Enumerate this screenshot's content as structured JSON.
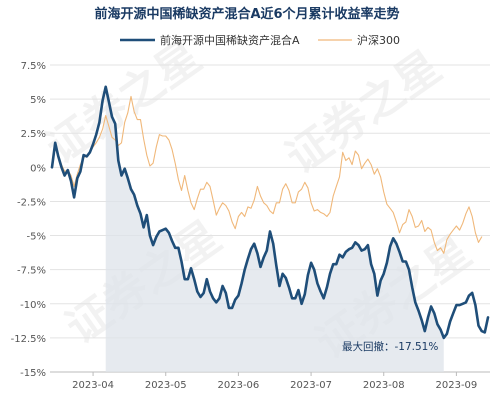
{
  "chart_data": {
    "type": "line",
    "title": "前海开源中国稀缺资产混合A近6个月累计收益率走势",
    "xlabel": "",
    "ylabel": "",
    "y_unit": "%",
    "ylim": [
      -15,
      7.5
    ],
    "yticks": [
      7.5,
      5,
      2.5,
      0,
      -2.5,
      -5,
      -7.5,
      -10,
      -12.5,
      -15
    ],
    "ytick_labels": [
      "7.5%",
      "5%",
      "2.5%",
      "0%",
      "-2.5%",
      "-5%",
      "-7.5%",
      "-10%",
      "-12.5%",
      "-15%"
    ],
    "xticks": [
      "2023-04",
      "2023-05",
      "2023-06",
      "2023-07",
      "2023-08",
      "2023-09"
    ],
    "legend_position": "top",
    "grid": true,
    "series": [
      {
        "name": "前海开源中国稀缺资产混合A",
        "color": "#1f4e79",
        "values": [
          0,
          1.8,
          0.8,
          0.0,
          -0.6,
          -0.2,
          -1.0,
          -2.2,
          -0.8,
          -0.3,
          0.9,
          0.8,
          1.1,
          1.7,
          2.4,
          3.3,
          4.9,
          5.9,
          4.8,
          3.7,
          3.2,
          0.5,
          -0.6,
          -0.1,
          -0.8,
          -1.6,
          -2.0,
          -2.8,
          -3.4,
          -4.4,
          -3.5,
          -5.0,
          -5.7,
          -5.1,
          -4.7,
          -4.6,
          -4.5,
          -4.8,
          -5.4,
          -5.9,
          -5.9,
          -6.9,
          -8.2,
          -8.2,
          -7.4,
          -8.2,
          -9.1,
          -9.5,
          -9.2,
          -8.2,
          -9.1,
          -9.6,
          -9.9,
          -9.6,
          -8.7,
          -9.2,
          -10.3,
          -10.3,
          -9.7,
          -9.4,
          -8.5,
          -7.5,
          -6.7,
          -6.0,
          -5.6,
          -6.3,
          -7.3,
          -6.6,
          -6.1,
          -4.7,
          -5.6,
          -7.2,
          -8.7,
          -7.8,
          -8.1,
          -8.8,
          -9.6,
          -9.6,
          -9.0,
          -10.0,
          -9.3,
          -7.9,
          -7.0,
          -7.5,
          -8.5,
          -9.1,
          -9.6,
          -8.8,
          -7.8,
          -7.1,
          -7.1,
          -6.4,
          -6.6,
          -6.2,
          -6.0,
          -5.9,
          -5.5,
          -5.7,
          -6.1,
          -6.0,
          -5.7,
          -7.1,
          -7.8,
          -9.4,
          -8.3,
          -7.8,
          -7.0,
          -5.8,
          -5.2,
          -5.6,
          -6.2,
          -6.9,
          -6.9,
          -7.5,
          -8.8,
          -9.9,
          -10.5,
          -11.2,
          -12.0,
          -11.0,
          -10.2,
          -10.7,
          -11.5,
          -11.9,
          -12.5,
          -12.2,
          -11.3,
          -10.7,
          -10.1,
          -10.1,
          -10.0,
          -9.9,
          -9.4,
          -9.2,
          -10.1,
          -11.6,
          -12.0,
          -12.1,
          -11.0
        ]
      },
      {
        "name": "沪深300",
        "color": "#f0b87a",
        "values": [
          0,
          1.5,
          0.9,
          0.2,
          -0.3,
          -0.2,
          -0.6,
          -1.4,
          -0.5,
          0.2,
          0.7,
          0.9,
          1.1,
          1.5,
          1.8,
          2.2,
          2.8,
          3.8,
          3.0,
          2.2,
          2.0,
          1.6,
          1.8,
          3.3,
          4.0,
          5.2,
          4.1,
          3.5,
          3.5,
          2.1,
          0.9,
          0.1,
          0.3,
          1.5,
          2.4,
          2.3,
          2.3,
          2.0,
          1.3,
          0.3,
          -0.9,
          -1.7,
          -0.6,
          -1.7,
          -2.6,
          -3.1,
          -2.3,
          -1.6,
          -1.6,
          -1.1,
          -1.4,
          -2.4,
          -3.5,
          -3.0,
          -2.6,
          -2.8,
          -3.2,
          -4.0,
          -4.5,
          -3.6,
          -3.3,
          -3.6,
          -2.9,
          -3.0,
          -2.4,
          -1.4,
          -2.1,
          -2.6,
          -2.8,
          -3.2,
          -3.4,
          -2.6,
          -2.6,
          -1.6,
          -1.2,
          -1.7,
          -2.6,
          -2.6,
          -1.8,
          -1.6,
          -1.1,
          -1.5,
          -2.6,
          -3.2,
          -3.1,
          -3.3,
          -3.4,
          -3.6,
          -3.3,
          -2.1,
          -1.4,
          -0.7,
          1.1,
          0.5,
          0.7,
          0.2,
          1.2,
          0.9,
          -0.1,
          0.3,
          0.6,
          0.2,
          -0.5,
          -0.1,
          -0.7,
          -1.8,
          -2.7,
          -3.0,
          -3.3,
          -4.0,
          -4.8,
          -4.2,
          -4.0,
          -3.1,
          -3.6,
          -4.4,
          -4.3,
          -3.9,
          -4.7,
          -4.4,
          -4.6,
          -5.5,
          -6.1,
          -5.9,
          -6.3,
          -5.3,
          -4.9,
          -4.6,
          -4.3,
          -4.6,
          -4.1,
          -3.4,
          -2.9,
          -3.6,
          -4.8,
          -5.5,
          -5.1
        ]
      }
    ],
    "annotations": [
      {
        "text": "最大回撤：-17.51%"
      }
    ]
  }
}
